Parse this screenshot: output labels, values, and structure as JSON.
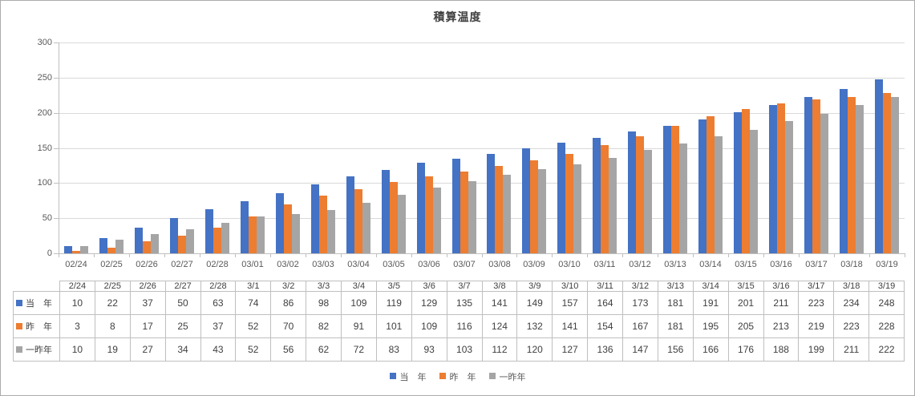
{
  "chart_data": {
    "type": "bar",
    "title": "積算温度",
    "categories": [
      "02/24",
      "02/25",
      "02/26",
      "02/27",
      "02/28",
      "03/01",
      "03/02",
      "03/03",
      "03/04",
      "03/05",
      "03/06",
      "03/07",
      "03/08",
      "03/09",
      "03/10",
      "03/11",
      "03/12",
      "03/13",
      "03/14",
      "03/15",
      "03/16",
      "03/17",
      "03/18",
      "03/19"
    ],
    "table_categories": [
      "2/24",
      "2/25",
      "2/26",
      "2/27",
      "2/28",
      "3/1",
      "3/2",
      "3/3",
      "3/4",
      "3/5",
      "3/6",
      "3/7",
      "3/8",
      "3/9",
      "3/10",
      "3/11",
      "3/12",
      "3/13",
      "3/14",
      "3/15",
      "3/16",
      "3/17",
      "3/18",
      "3/19"
    ],
    "series": [
      {
        "name": "当　年",
        "color": "#4472C4",
        "values": [
          10,
          22,
          37,
          50,
          63,
          74,
          86,
          98,
          109,
          119,
          129,
          135,
          141,
          149,
          157,
          164,
          173,
          181,
          191,
          201,
          211,
          223,
          234,
          248
        ]
      },
      {
        "name": "昨　年",
        "color": "#ED7D31",
        "values": [
          3,
          8,
          17,
          25,
          37,
          52,
          70,
          82,
          91,
          101,
          109,
          116,
          124,
          132,
          141,
          154,
          167,
          181,
          195,
          205,
          213,
          219,
          223,
          228
        ]
      },
      {
        "name": "一昨年",
        "color": "#A5A5A5",
        "values": [
          10,
          19,
          27,
          34,
          43,
          52,
          56,
          62,
          72,
          83,
          93,
          103,
          112,
          120,
          127,
          136,
          147,
          156,
          166,
          176,
          188,
          199,
          211,
          222
        ]
      }
    ],
    "ylim": [
      0,
      300
    ],
    "ytick_step": 50,
    "ytick_labels": [
      "0",
      "50",
      "100",
      "150",
      "200",
      "250",
      "300"
    ],
    "xlabel": "",
    "ylabel": "",
    "grid": true,
    "legend_position": "bottom",
    "colors": {
      "gridline": "#D9D9D9",
      "axis": "#BFBFBF",
      "table_border": "#BFBFBF",
      "axis_text": "#595959",
      "table_text": "#404040",
      "title_text": "#404040"
    }
  }
}
